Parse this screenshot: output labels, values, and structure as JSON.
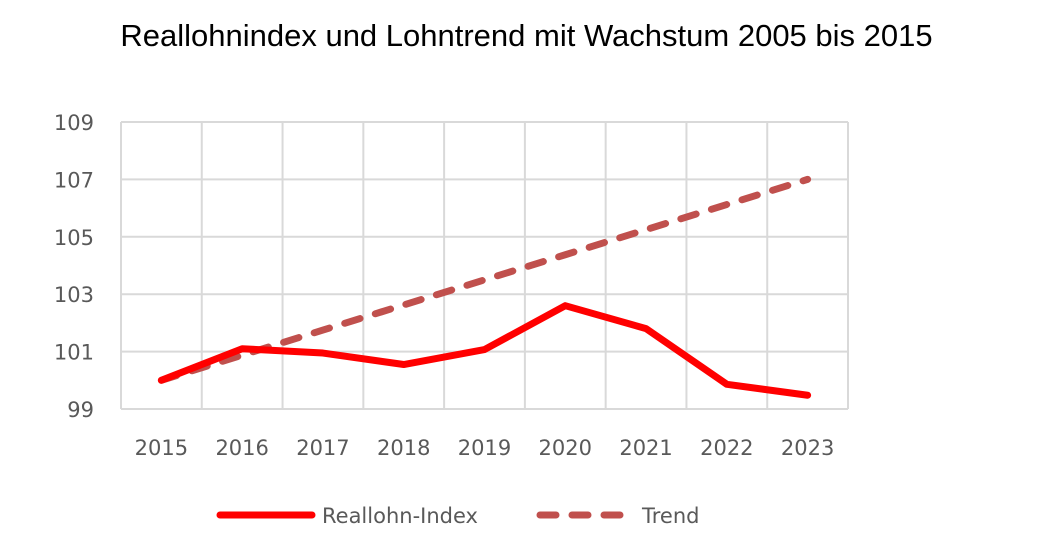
{
  "chart_data": {
    "type": "line",
    "title": "Reallohnindex und Lohntrend mit Wachstum 2005 bis 2015",
    "xlabel": "",
    "ylabel": "",
    "categories": [
      "2015",
      "2016",
      "2017",
      "2018",
      "2019",
      "2020",
      "2021",
      "2022",
      "2023"
    ],
    "ylim": [
      99,
      109
    ],
    "yticks": [
      "99",
      "101",
      "103",
      "105",
      "107",
      "109"
    ],
    "grid": true,
    "legend": "bottom",
    "series": [
      {
        "name": "Reallohn-Index",
        "style": "solid",
        "color": "#FF0000",
        "values": [
          100.0,
          101.1,
          100.95,
          100.55,
          101.07,
          102.6,
          101.8,
          99.86,
          99.48
        ]
      },
      {
        "name": "Trend",
        "style": "dashed",
        "color": "#C0504D",
        "values": [
          100.0,
          100.875,
          101.75,
          102.625,
          103.5,
          104.375,
          105.25,
          106.125,
          107.0
        ]
      }
    ]
  }
}
